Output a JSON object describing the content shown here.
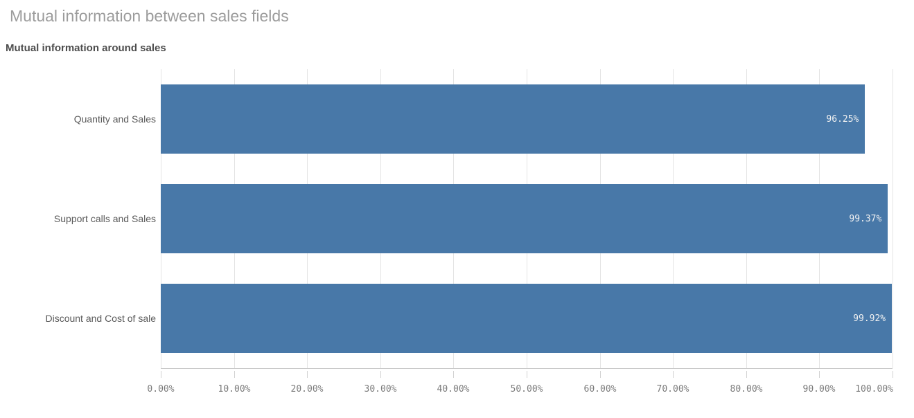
{
  "sheet": {
    "title": "Mutual information between sales fields"
  },
  "chart": {
    "title": "Mutual information around sales"
  },
  "colors": {
    "bar": "#4878a8",
    "sheet_title": "#9c9c9c",
    "chart_title": "#4d4d4d",
    "category_label": "#595959",
    "axis_label": "#7a7a7a",
    "value_label": "#f2f2f2",
    "gridline": "#e4e4e4",
    "axis_line": "#c9c9c9",
    "tick": "#d2d2d2"
  },
  "chart_data": {
    "type": "bar",
    "orientation": "horizontal",
    "title": "Mutual information around sales",
    "categories": [
      "Quantity and Sales",
      "Support calls and Sales",
      "Discount and Cost of sale"
    ],
    "values": [
      96.25,
      99.37,
      99.92
    ],
    "value_labels": [
      "96.25%",
      "99.37%",
      "99.92%"
    ],
    "x_tick_labels": [
      "0.00%",
      "10.00%",
      "20.00%",
      "30.00%",
      "40.00%",
      "50.00%",
      "60.00%",
      "70.00%",
      "80.00%",
      "90.00%",
      "100.00%"
    ],
    "xlim": [
      0,
      100
    ],
    "x_tick_step": 10,
    "xlabel": "",
    "ylabel": "",
    "grid": true,
    "legend": false
  }
}
